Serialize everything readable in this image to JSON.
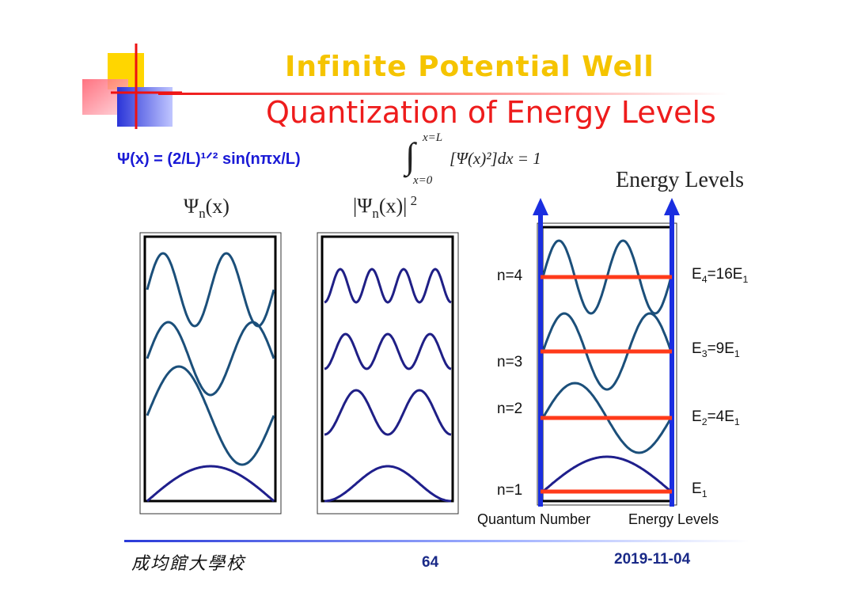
{
  "title": "Infinite Potential Well",
  "subtitle": "Quantization of Energy Levels",
  "wavefunction_formula": "Ψ(x) = (2/L)¹ᐟ² sin(nπx/L)",
  "normalization": {
    "upper": "x=L",
    "lower": "x=0",
    "integrand": "[Ψ(x)²]dx = 1"
  },
  "panel_labels": {
    "psi": "Ψn(x)",
    "psi_squared": "|Ψn(x)| 2",
    "energy_levels": "Energy Levels"
  },
  "levels": [
    {
      "n_label": "n=4",
      "energy_label": "E4=16E1",
      "n": 4,
      "energy_multiple": 16
    },
    {
      "n_label": "n=3",
      "energy_label": "E3=9E1",
      "n": 3,
      "energy_multiple": 9
    },
    {
      "n_label": "n=2",
      "energy_label": "E2=4E1",
      "n": 2,
      "energy_multiple": 4
    },
    {
      "n_label": "n=1",
      "energy_label": "E1",
      "n": 1,
      "energy_multiple": 1
    }
  ],
  "axis_labels": {
    "quantum_number": "Quantum Number",
    "energy_levels": "Energy Levels"
  },
  "footer": {
    "university": "成均館大學校",
    "page": "64",
    "date": "2019-11-04"
  },
  "colors": {
    "title_yellow": "#f5c400",
    "title_red": "#ee1c1c",
    "formula_blue": "#1a1ad6",
    "curve": "#1b4f7a",
    "curve_ground": "#1f1f8c",
    "level_line": "#ff3a1a",
    "axis_arrow": "#1a2ee0"
  }
}
